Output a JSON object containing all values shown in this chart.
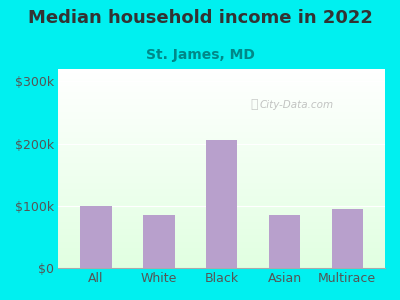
{
  "title": "Median household income in 2022",
  "subtitle": "St. James, MD",
  "categories": [
    "All",
    "White",
    "Black",
    "Asian",
    "Multirace"
  ],
  "values": [
    100000,
    85000,
    205000,
    85000,
    95000
  ],
  "bar_color": "#b8a0cc",
  "outer_bg": "#00f0f0",
  "title_color": "#333333",
  "subtitle_color": "#008888",
  "tick_label_color": "#555555",
  "yticks": [
    0,
    100000,
    200000,
    300000
  ],
  "ytick_labels": [
    "$0",
    "$100k",
    "$200k",
    "$300k"
  ],
  "ylim": [
    0,
    320000
  ],
  "watermark": "City-Data.com",
  "title_fontsize": 13,
  "subtitle_fontsize": 10,
  "tick_fontsize": 9,
  "bg_colors": [
    "#ffffff",
    "#e8f5e0"
  ],
  "plot_border_color": "#cccccc"
}
